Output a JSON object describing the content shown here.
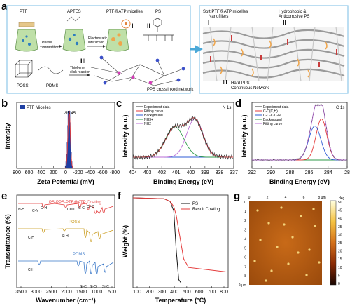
{
  "panels": {
    "a": {
      "label": "a",
      "labels": {
        "ptf": "PTF",
        "aptes": "APTES",
        "micelles": "PTF@ATP micelles",
        "ps": "PS",
        "step1": "Phase\nseparation",
        "step2": "Electrostatic\ninteraction",
        "poss": "POSS",
        "pdms": "PDMS",
        "thiolene": "Thiol-ene\nclick reaction",
        "network": "PPS crosslinked network",
        "roman1": "I",
        "roman2": "II",
        "roman3": "III"
      },
      "right": {
        "soft": "Soft PTF@ATP micelles\nNanofillers",
        "hydro": "Hydrophobic &\nAnticorrosive PS",
        "hard": "Hard PPS\nContinuous Network",
        "roman1": "I",
        "roman2": "II",
        "roman3": "III"
      },
      "colors": {
        "border": "#8fc9e8",
        "network": "#e7e7e7",
        "arrow": "#4aa8d8"
      }
    },
    "b": {
      "label": "b",
      "legend": "PTF Micelles",
      "annotation": "-55.45",
      "xlabel": "Zeta Potential (mV)",
      "ylabel": "Intensity",
      "xticks": [
        "800",
        "600",
        "400",
        "200",
        "0",
        "-200",
        "-400",
        "-600",
        "-800"
      ]
    },
    "c": {
      "label": "c",
      "corner": "N 1s",
      "xlabel": "Binding Energy (eV)",
      "ylabel": "Intensity (a.u.)",
      "legend": [
        "Experiment data",
        "Fitting curve",
        "Background",
        "NH3+",
        "NH2"
      ],
      "legend_colors": [
        "#333333",
        "#e43b3b",
        "#2e5bd6",
        "#2f9a4a",
        "#b86bd6"
      ],
      "xticks": [
        "404",
        "403",
        "402",
        "401",
        "400",
        "399",
        "338",
        "337"
      ]
    },
    "d": {
      "label": "d",
      "corner": "C 1s",
      "xlabel": "Binding Energy (eV)",
      "ylabel": "Intensity (a.u.)",
      "legend": [
        "Experiment data",
        "C-C(C,H)",
        "C-O-C/C-N",
        "Background",
        "Fitting curve"
      ],
      "legend_colors": [
        "#333333",
        "#e43b3b",
        "#2e5bd6",
        "#2f9a4a",
        "#b86bd6"
      ],
      "xticks": [
        "292",
        "290",
        "288",
        "286",
        "284",
        "28"
      ]
    },
    "e": {
      "label": "e",
      "titles": [
        "PS-PPS-PTF@ATP Coating",
        "POSS",
        "PDMS"
      ],
      "title_colors": [
        "#e43b3b",
        "#c99a1a",
        "#3a78c8"
      ],
      "annotations": [
        "N-H",
        "C-N",
        "O-H",
        "C=O",
        "C-C",
        "C=C",
        "C-H",
        "Si-H",
        "C-H",
        "Si-C",
        "Si-O",
        "Si-C"
      ],
      "xlabel": "Wavenumber (cm⁻¹)",
      "ylabel": "Transmittance (%)",
      "xticks": [
        "3500",
        "3000",
        "2500",
        "2000",
        "1500",
        "1000",
        "500"
      ]
    },
    "f": {
      "label": "f",
      "legend": [
        "PS",
        "Result Coating"
      ],
      "legend_colors": [
        "#111111",
        "#e43b3b"
      ],
      "xlabel": "Temperature (°C)",
      "ylabel": "Weight (%)",
      "xticks": [
        "100",
        "200",
        "300",
        "400",
        "500",
        "600",
        "700",
        "800"
      ]
    },
    "g": {
      "label": "g",
      "top_ticks": [
        "0",
        "2",
        "4",
        "6",
        "8 μm"
      ],
      "left_ticks": [
        "0",
        "1",
        "2",
        "3",
        "4",
        "5",
        "6",
        "7",
        "8",
        "9 μm"
      ],
      "colorbar_ticks": [
        "50",
        "45",
        "40",
        "35",
        "30",
        "25",
        "20",
        "15",
        "10",
        "5",
        "0"
      ],
      "colorbar_unit": "deg"
    }
  },
  "chart_data": [
    {
      "panel": "b",
      "type": "bar",
      "title": "",
      "xlabel": "Zeta Potential (mV)",
      "ylabel": "Intensity",
      "xlim": [
        800,
        -800
      ],
      "peak_label": "-55.45",
      "x": [
        -10,
        -20,
        -30,
        -40,
        -50,
        -55.45,
        -60,
        -70,
        -80,
        -90,
        -100
      ],
      "values": [
        0.05,
        0.12,
        0.25,
        0.45,
        0.75,
        1.0,
        0.8,
        0.5,
        0.28,
        0.12,
        0.05
      ],
      "series": [
        {
          "name": "PTF Micelles"
        }
      ]
    },
    {
      "panel": "c",
      "type": "line",
      "title": "N 1s",
      "xlabel": "Binding Energy (eV)",
      "ylabel": "Intensity (a.u.)",
      "xlim": [
        404,
        397
      ],
      "series": [
        {
          "name": "Experiment data",
          "center": 400.3,
          "width": 1.4
        },
        {
          "name": "Fitting curve",
          "center": 400.3,
          "width": 1.35
        },
        {
          "name": "Background"
        },
        {
          "name": "NH3+",
          "center": 401.1,
          "width": 0.9
        },
        {
          "name": "NH2",
          "center": 399.7,
          "width": 0.8
        }
      ]
    },
    {
      "panel": "d",
      "type": "line",
      "title": "C 1s",
      "xlabel": "Binding Energy (eV)",
      "ylabel": "Intensity (a.u.)",
      "xlim": [
        292,
        282
      ],
      "series": [
        {
          "name": "Experiment data",
          "center": 284.8,
          "width": 0.9
        },
        {
          "name": "C-C(C,H)",
          "center": 284.7,
          "width": 0.8
        },
        {
          "name": "C-O-C/C-N",
          "center": 285.5,
          "width": 0.9
        },
        {
          "name": "Background"
        },
        {
          "name": "Fitting curve",
          "center": 284.8,
          "width": 0.9
        }
      ]
    },
    {
      "panel": "f",
      "type": "line",
      "title": "",
      "xlabel": "Temperature (°C)",
      "ylabel": "Weight (%)",
      "xlim": [
        50,
        820
      ],
      "ylim": [
        0,
        100
      ],
      "series": [
        {
          "name": "PS",
          "x": [
            50,
            300,
            350,
            380,
            400,
            420,
            440,
            800
          ],
          "y": [
            100,
            99,
            96,
            85,
            40,
            6,
            2,
            2
          ]
        },
        {
          "name": "Result Coating",
          "x": [
            50,
            300,
            350,
            380,
            400,
            430,
            460,
            500,
            800
          ],
          "y": [
            100,
            99,
            96,
            90,
            80,
            55,
            30,
            20,
            15
          ]
        }
      ]
    }
  ]
}
